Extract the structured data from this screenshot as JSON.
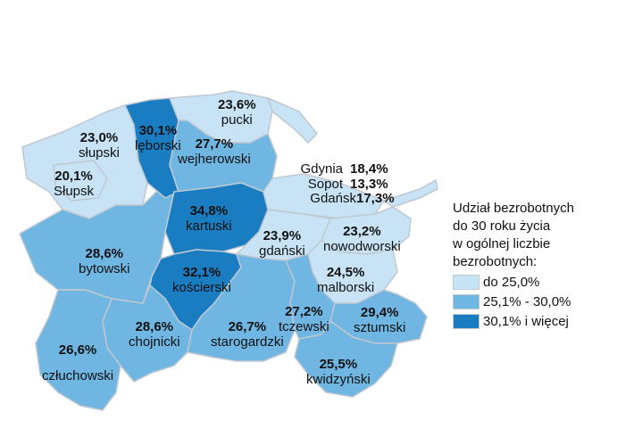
{
  "colors": {
    "low": "#c7e3f5",
    "mid": "#6fb6e3",
    "high": "#1a7dc2",
    "border": "#c0c8d0"
  },
  "regions": [
    {
      "id": "slupski",
      "name": "słupski",
      "value": "23,0%",
      "cls": "low"
    },
    {
      "id": "slupsk",
      "name": "Słupsk",
      "value": "20,1%",
      "cls": "low"
    },
    {
      "id": "leborski",
      "name": "lęborski",
      "value": "30,1%",
      "cls": "high"
    },
    {
      "id": "pucki",
      "name": "pucki",
      "value": "23,6%",
      "cls": "low"
    },
    {
      "id": "wejherowski",
      "name": "wejherowski",
      "value": "27,7%",
      "cls": "mid"
    },
    {
      "id": "kartuski",
      "name": "kartuski",
      "value": "34,8%",
      "cls": "high"
    },
    {
      "id": "bytowski",
      "name": "bytowski",
      "value": "28,6%",
      "cls": "mid"
    },
    {
      "id": "gdanski",
      "name": "gdański",
      "value": "23,9%",
      "cls": "low"
    },
    {
      "id": "nowodworski",
      "name": "nowodworski",
      "value": "23,2%",
      "cls": "low"
    },
    {
      "id": "koscierski",
      "name": "kościerski",
      "value": "32,1%",
      "cls": "high"
    },
    {
      "id": "malborski",
      "name": "malborski",
      "value": "24,5%",
      "cls": "low"
    },
    {
      "id": "czluchowski",
      "name": "człuchowski",
      "value": "26,6%",
      "cls": "mid"
    },
    {
      "id": "chojnicki",
      "name": "chojnicki",
      "value": "28,6%",
      "cls": "mid"
    },
    {
      "id": "starogardzki",
      "name": "starogardzki",
      "value": "26,7%",
      "cls": "mid"
    },
    {
      "id": "tczewski",
      "name": "tczewski",
      "value": "27,2%",
      "cls": "mid"
    },
    {
      "id": "sztumski",
      "name": "sztumski",
      "value": "29,4%",
      "cls": "mid"
    },
    {
      "id": "kwidzynski",
      "name": "kwidzyński",
      "value": "25,5%",
      "cls": "mid"
    }
  ],
  "cities": [
    {
      "name": "Gdynia",
      "value": "18,4%"
    },
    {
      "name": "Sopot",
      "value": "13,3%"
    },
    {
      "name": "Gdańsk",
      "value": "17,3%"
    }
  ],
  "legend": {
    "title_lines": [
      "Udział bezrobotnych",
      "do 30 roku życia",
      "w ogólnej liczbie",
      "bezrobotnych:"
    ],
    "items": [
      {
        "label": "do 25,0%",
        "cls": "low"
      },
      {
        "label": "25,1% - 30,0%",
        "cls": "mid"
      },
      {
        "label": "30,1% i więcej",
        "cls": "high"
      }
    ]
  }
}
